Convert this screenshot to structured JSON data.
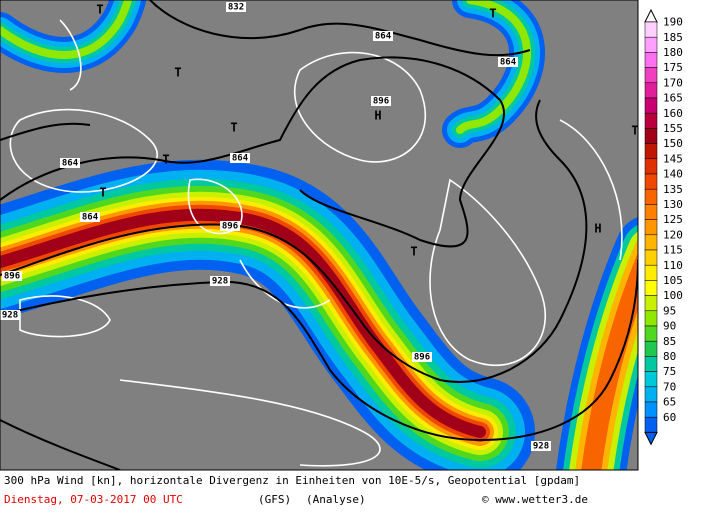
{
  "legend": {
    "entries": [
      {
        "label": "190",
        "color": "#ffd0ff"
      },
      {
        "label": "185",
        "color": "#ffa0ff"
      },
      {
        "label": "180",
        "color": "#ff70f0"
      },
      {
        "label": "175",
        "color": "#f040c0"
      },
      {
        "label": "170",
        "color": "#e0209a"
      },
      {
        "label": "165",
        "color": "#c80070"
      },
      {
        "label": "160",
        "color": "#b8003c"
      },
      {
        "label": "155",
        "color": "#a00018"
      },
      {
        "label": "150",
        "color": "#c01800"
      },
      {
        "label": "145",
        "color": "#e03000"
      },
      {
        "label": "140",
        "color": "#f04800"
      },
      {
        "label": "135",
        "color": "#f86400"
      },
      {
        "label": "130",
        "color": "#ff8000"
      },
      {
        "label": "125",
        "color": "#ff9800"
      },
      {
        "label": "120",
        "color": "#ffb400"
      },
      {
        "label": "115",
        "color": "#ffd000"
      },
      {
        "label": "110",
        "color": "#ffec00"
      },
      {
        "label": "105",
        "color": "#ffff00"
      },
      {
        "label": "100",
        "color": "#c8f000"
      },
      {
        "label": "95",
        "color": "#90e800"
      },
      {
        "label": "90",
        "color": "#50d820"
      },
      {
        "label": "85",
        "color": "#20c850"
      },
      {
        "label": "80",
        "color": "#00c8a0"
      },
      {
        "label": "75",
        "color": "#00c8d8"
      },
      {
        "label": "70",
        "color": "#00b0f0"
      },
      {
        "label": "65",
        "color": "#0090ff"
      },
      {
        "label": "60",
        "color": "#0060f0"
      }
    ]
  },
  "map": {
    "contour_labels": [
      "832",
      "864",
      "864",
      "896",
      "864",
      "864",
      "864",
      "896",
      "896",
      "928",
      "928",
      "896",
      "928"
    ],
    "centers": [
      "T",
      "T",
      "T",
      "T",
      "T",
      "T",
      "T",
      "T",
      "H",
      "H"
    ]
  },
  "footer": {
    "description": "300 hPa Wind [kn], horizontale Divergenz in Einheiten von 10E-5/s, Geopotential [gpdam]",
    "date": "Dienstag, 07-03-2017  00 UTC",
    "model": "(GFS)",
    "run": "(Analyse)",
    "credit": "© www.wetter3.de"
  }
}
